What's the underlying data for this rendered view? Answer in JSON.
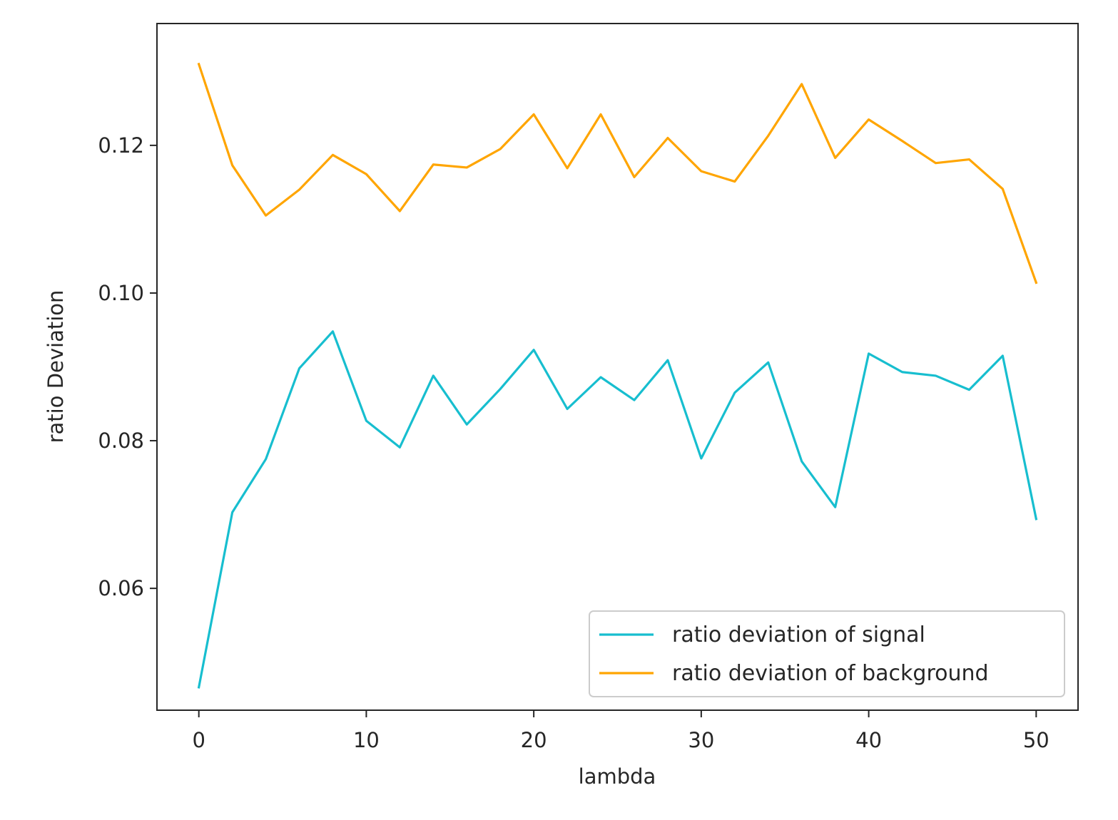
{
  "chart_data": {
    "type": "line",
    "title": "",
    "xlabel": "lambda",
    "ylabel": "ratio Deviation",
    "xlim": [
      -2.5,
      52.5
    ],
    "ylim": [
      0.0435,
      0.1365
    ],
    "x_ticks": [
      0,
      10,
      20,
      30,
      40,
      50
    ],
    "x_tick_labels": [
      "0",
      "10",
      "20",
      "30",
      "40",
      "50"
    ],
    "y_ticks": [
      0.06,
      0.08,
      0.1,
      0.12
    ],
    "y_tick_labels": [
      "0.06",
      "0.08",
      "0.10",
      "0.12"
    ],
    "grid": false,
    "legend_position": "lower-right",
    "x": [
      0,
      2,
      4,
      6,
      8,
      10,
      12,
      14,
      16,
      18,
      20,
      22,
      24,
      26,
      28,
      30,
      32,
      34,
      36,
      38,
      40,
      42,
      44,
      46,
      48,
      50
    ],
    "series": [
      {
        "name": "ratio deviation of signal",
        "color": "#17becf",
        "values": [
          0.0466,
          0.0703,
          0.0775,
          0.0898,
          0.0948,
          0.0827,
          0.0791,
          0.0888,
          0.0822,
          0.087,
          0.0923,
          0.0843,
          0.0886,
          0.0855,
          0.0909,
          0.0776,
          0.0865,
          0.0906,
          0.0772,
          0.071,
          0.0918,
          0.0893,
          0.0888,
          0.0869,
          0.0915,
          0.0694
        ]
      },
      {
        "name": "ratio deviation of background",
        "color": "#ffa500",
        "values": [
          0.131,
          0.1173,
          0.1105,
          0.114,
          0.1187,
          0.1161,
          0.1111,
          0.1174,
          0.117,
          0.1195,
          0.1242,
          0.1169,
          0.1242,
          0.1157,
          0.121,
          0.1165,
          0.1151,
          0.1213,
          0.1283,
          0.1183,
          0.1235,
          0.1206,
          0.1176,
          0.1181,
          0.1141,
          0.1014
        ]
      }
    ]
  }
}
